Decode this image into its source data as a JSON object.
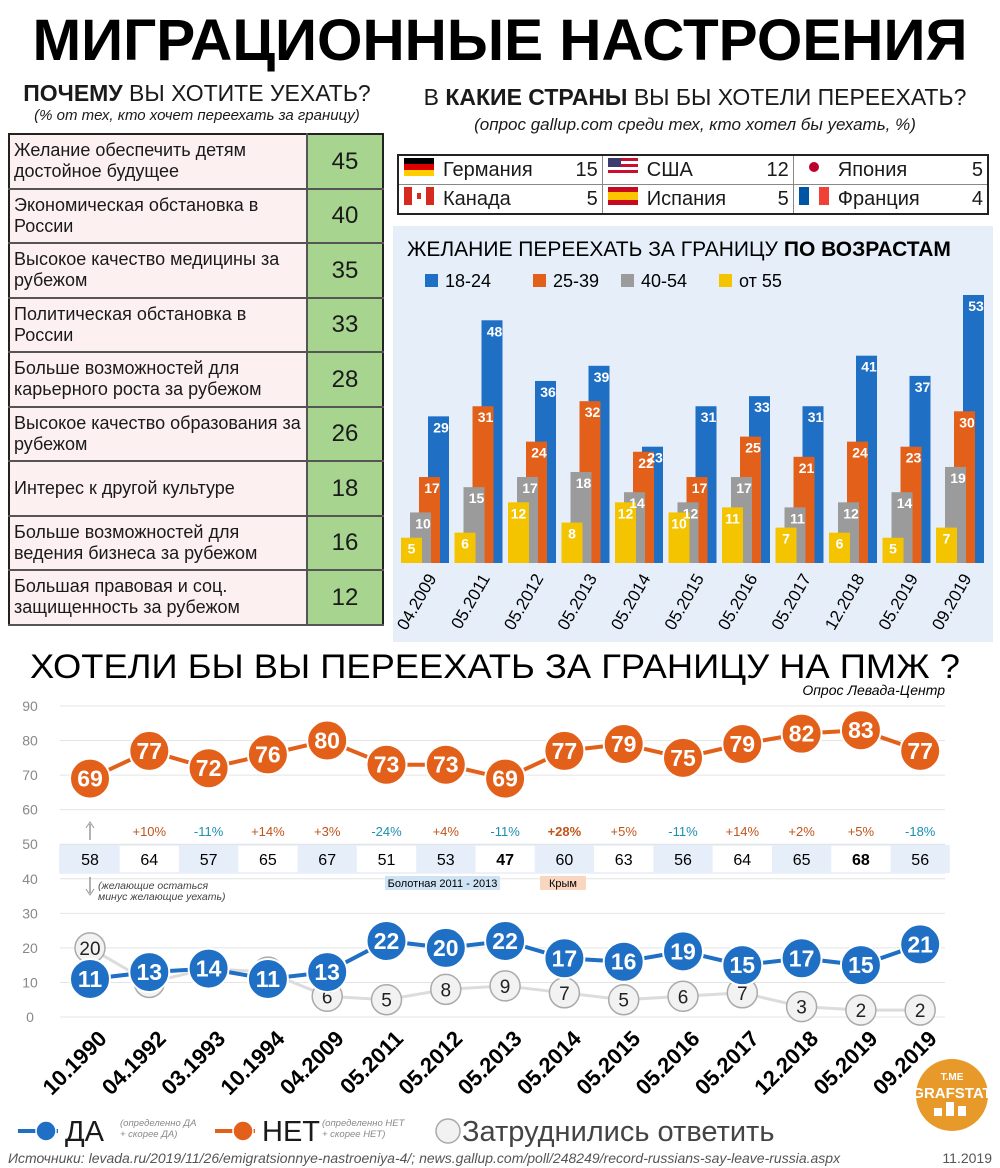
{
  "title": "МИГРАЦИОННЫЕ НАСТРОЕНИЯ",
  "reasons": {
    "title_bold": "ПОЧЕМУ",
    "title_rest": "ВЫ ХОТИТЕ УЕХАТЬ?",
    "subtitle": "(% от тех, кто хочет переехать за границу)",
    "rows": [
      {
        "label": "Желание обеспечить детям достойное будущее",
        "value": 45
      },
      {
        "label": "Экономическая обстановка в России",
        "value": 40
      },
      {
        "label": "Высокое качество медицины за рубежом",
        "value": 35
      },
      {
        "label": "Политическая обстановка в России",
        "value": 33
      },
      {
        "label": "Больше возможностей для карьерного роста за рубежом",
        "value": 28
      },
      {
        "label": "Высокое качество образования за рубежом",
        "value": 26
      },
      {
        "label": "Интерес к другой культуре",
        "value": 18
      },
      {
        "label": "Больше возможностей для ведения бизнеса за рубежом",
        "value": 16
      },
      {
        "label": "Большая правовая и соц. защищенность за рубежом",
        "value": 12
      }
    ]
  },
  "countries": {
    "title_pre": "В",
    "title_bold": "КАКИЕ СТРАНЫ",
    "title_rest": "ВЫ БЫ ХОТЕЛИ ПЕРЕЕХАТЬ?",
    "subtitle": "(опрос gallup.com среди тех, кто хотел бы уехать, %)",
    "rows": [
      {
        "name": "Германия",
        "value": 15
      },
      {
        "name": "США",
        "value": 12
      },
      {
        "name": "Япония",
        "value": 5
      },
      {
        "name": "Канада",
        "value": 5
      },
      {
        "name": "Испания",
        "value": 5
      },
      {
        "name": "Франция",
        "value": 4
      }
    ]
  },
  "chart_data": [
    {
      "type": "bar",
      "title": "ЖЕЛАНИЕ ПЕРЕЕХАТЬ ЗА ГРАНИЦУ",
      "title_bold": "ПО ВОЗРАСТАМ",
      "categories": [
        "04.2009",
        "05.2011",
        "05.2012",
        "05.2013",
        "05.2014",
        "05.2015",
        "05.2016",
        "05.2017",
        "12.2018",
        "05.2019",
        "09.2019"
      ],
      "series": [
        {
          "name": "18-24",
          "color": "#1f6fc5",
          "values": [
            29,
            48,
            36,
            39,
            23,
            31,
            33,
            31,
            41,
            37,
            53
          ]
        },
        {
          "name": "25-39",
          "color": "#e2601a",
          "values": [
            17,
            31,
            24,
            32,
            22,
            17,
            25,
            21,
            24,
            23,
            30
          ]
        },
        {
          "name": "40-54",
          "color": "#9b9b9b",
          "values": [
            10,
            15,
            17,
            18,
            14,
            12,
            17,
            11,
            12,
            14,
            19
          ]
        },
        {
          "name": "от 55",
          "color": "#f5c400",
          "values": [
            5,
            6,
            12,
            8,
            12,
            10,
            11,
            7,
            6,
            5,
            7
          ]
        }
      ]
    },
    {
      "type": "line",
      "title": "ХОТЕЛИ БЫ ВЫ ПЕРЕЕХАТЬ ЗА ГРАНИЦУ НА ПМЖ ?",
      "subtitle": "Опрос Левада-Центр",
      "categories": [
        "10.1990",
        "04.1992",
        "03.1993",
        "10.1994",
        "04.2009",
        "05.2011",
        "05.2012",
        "05.2013",
        "05.2014",
        "05.2015",
        "05.2016",
        "05.2017",
        "12.2018",
        "05.2019",
        "09.2019"
      ],
      "series": [
        {
          "name": "Затруднились ответить",
          "color": "#c8c8c8",
          "values": [
            20,
            10,
            14,
            13,
            6,
            5,
            8,
            9,
            7,
            5,
            6,
            7,
            3,
            2,
            2
          ]
        },
        {
          "name": "НЕТ",
          "note": [
            "(определенно НЕТ",
            "+ скорее НЕТ)"
          ],
          "color": "#e2601a",
          "values": [
            69,
            77,
            72,
            76,
            80,
            73,
            73,
            69,
            77,
            79,
            75,
            79,
            82,
            83,
            77
          ]
        },
        {
          "name": "ДА",
          "note": [
            "(определенно ДА",
            "+ скорее ДА)"
          ],
          "color": "#1f6fc5",
          "values": [
            11,
            13,
            14,
            11,
            13,
            22,
            20,
            22,
            17,
            16,
            19,
            15,
            17,
            15,
            21
          ]
        }
      ],
      "ylim": [
        0,
        90
      ],
      "yticks": [
        0,
        10,
        20,
        30,
        40,
        50,
        60,
        70,
        80,
        90
      ],
      "grid": true,
      "difference": {
        "values": [
          58,
          64,
          57,
          65,
          67,
          51,
          53,
          47,
          60,
          63,
          56,
          64,
          65,
          68,
          56
        ],
        "changes": [
          null,
          "+10%",
          "-11%",
          "+14%",
          "+3%",
          "-24%",
          "+4%",
          "-11%",
          "+28%",
          "+5%",
          "-11%",
          "+14%",
          "+2%",
          "+5%",
          "-18%"
        ],
        "note": [
          "(желающие остаться",
          "минус желающие уехать)"
        ]
      },
      "annotations": [
        "Болотная 2011 - 2013",
        "Крым"
      ]
    }
  ],
  "sources": "Источники: levada.ru/2019/11/26/emigratsionnye-nastroeniya-4/; news.gallup.com/poll/248249/record-russians-say-leave-russia.aspx",
  "date": "11.2019",
  "logo": {
    "top": "T.ME",
    "bottom": "GRAFSTAT"
  }
}
